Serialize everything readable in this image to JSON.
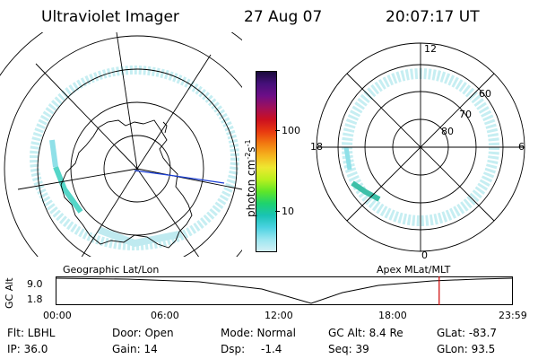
{
  "header": {
    "instrument": "Ultraviolet Imager",
    "date": "27 Aug 07",
    "time": "20:07:17 UT"
  },
  "geo_panel": {
    "label": "Geographic Lat/Lon"
  },
  "mag_panel": {
    "label": "Apex MLat/MLT",
    "mlt_labels": {
      "top": "12",
      "bottom": "0",
      "left": "18",
      "right": "6"
    },
    "lat_labels": [
      "60",
      "70",
      "80"
    ]
  },
  "colorbar": {
    "unit_label": "photon cm",
    "unit_sup1": "-2",
    "unit_mid": "s",
    "unit_sup2": "-1",
    "ticks": [
      "100",
      "10"
    ],
    "colors": [
      "#1a0a3c",
      "#46107a",
      "#6d0e87",
      "#a0105a",
      "#cc1020",
      "#e83a10",
      "#f27a10",
      "#f5b41e",
      "#eee830",
      "#b9f01e",
      "#5fe628",
      "#1ed26e",
      "#19c3b4",
      "#4bd2e1",
      "#9be6f0",
      "#d2f0f5"
    ]
  },
  "altitude_plot": {
    "ylabel": "GC Alt",
    "yticks": [
      "9.0",
      "1.8"
    ],
    "xticks": [
      "00:00",
      "06:00",
      "12:00",
      "18:00",
      "23:59"
    ],
    "current_time_marker": "20:07",
    "marker_color": "#cc0000"
  },
  "info": {
    "flt": "Flt: LBHL",
    "door": "Door: Open",
    "mode": "Mode: Normal",
    "gc_alt": "GC Alt: 8.4 Re",
    "glat": "GLat: -83.7",
    "ip": "IP: 36.0",
    "gain": "Gain: 14",
    "dsp_label": "Dsp:",
    "dsp_value": "-1.4",
    "seq": "Seq: 39",
    "glon": "GLon:  93.5"
  }
}
